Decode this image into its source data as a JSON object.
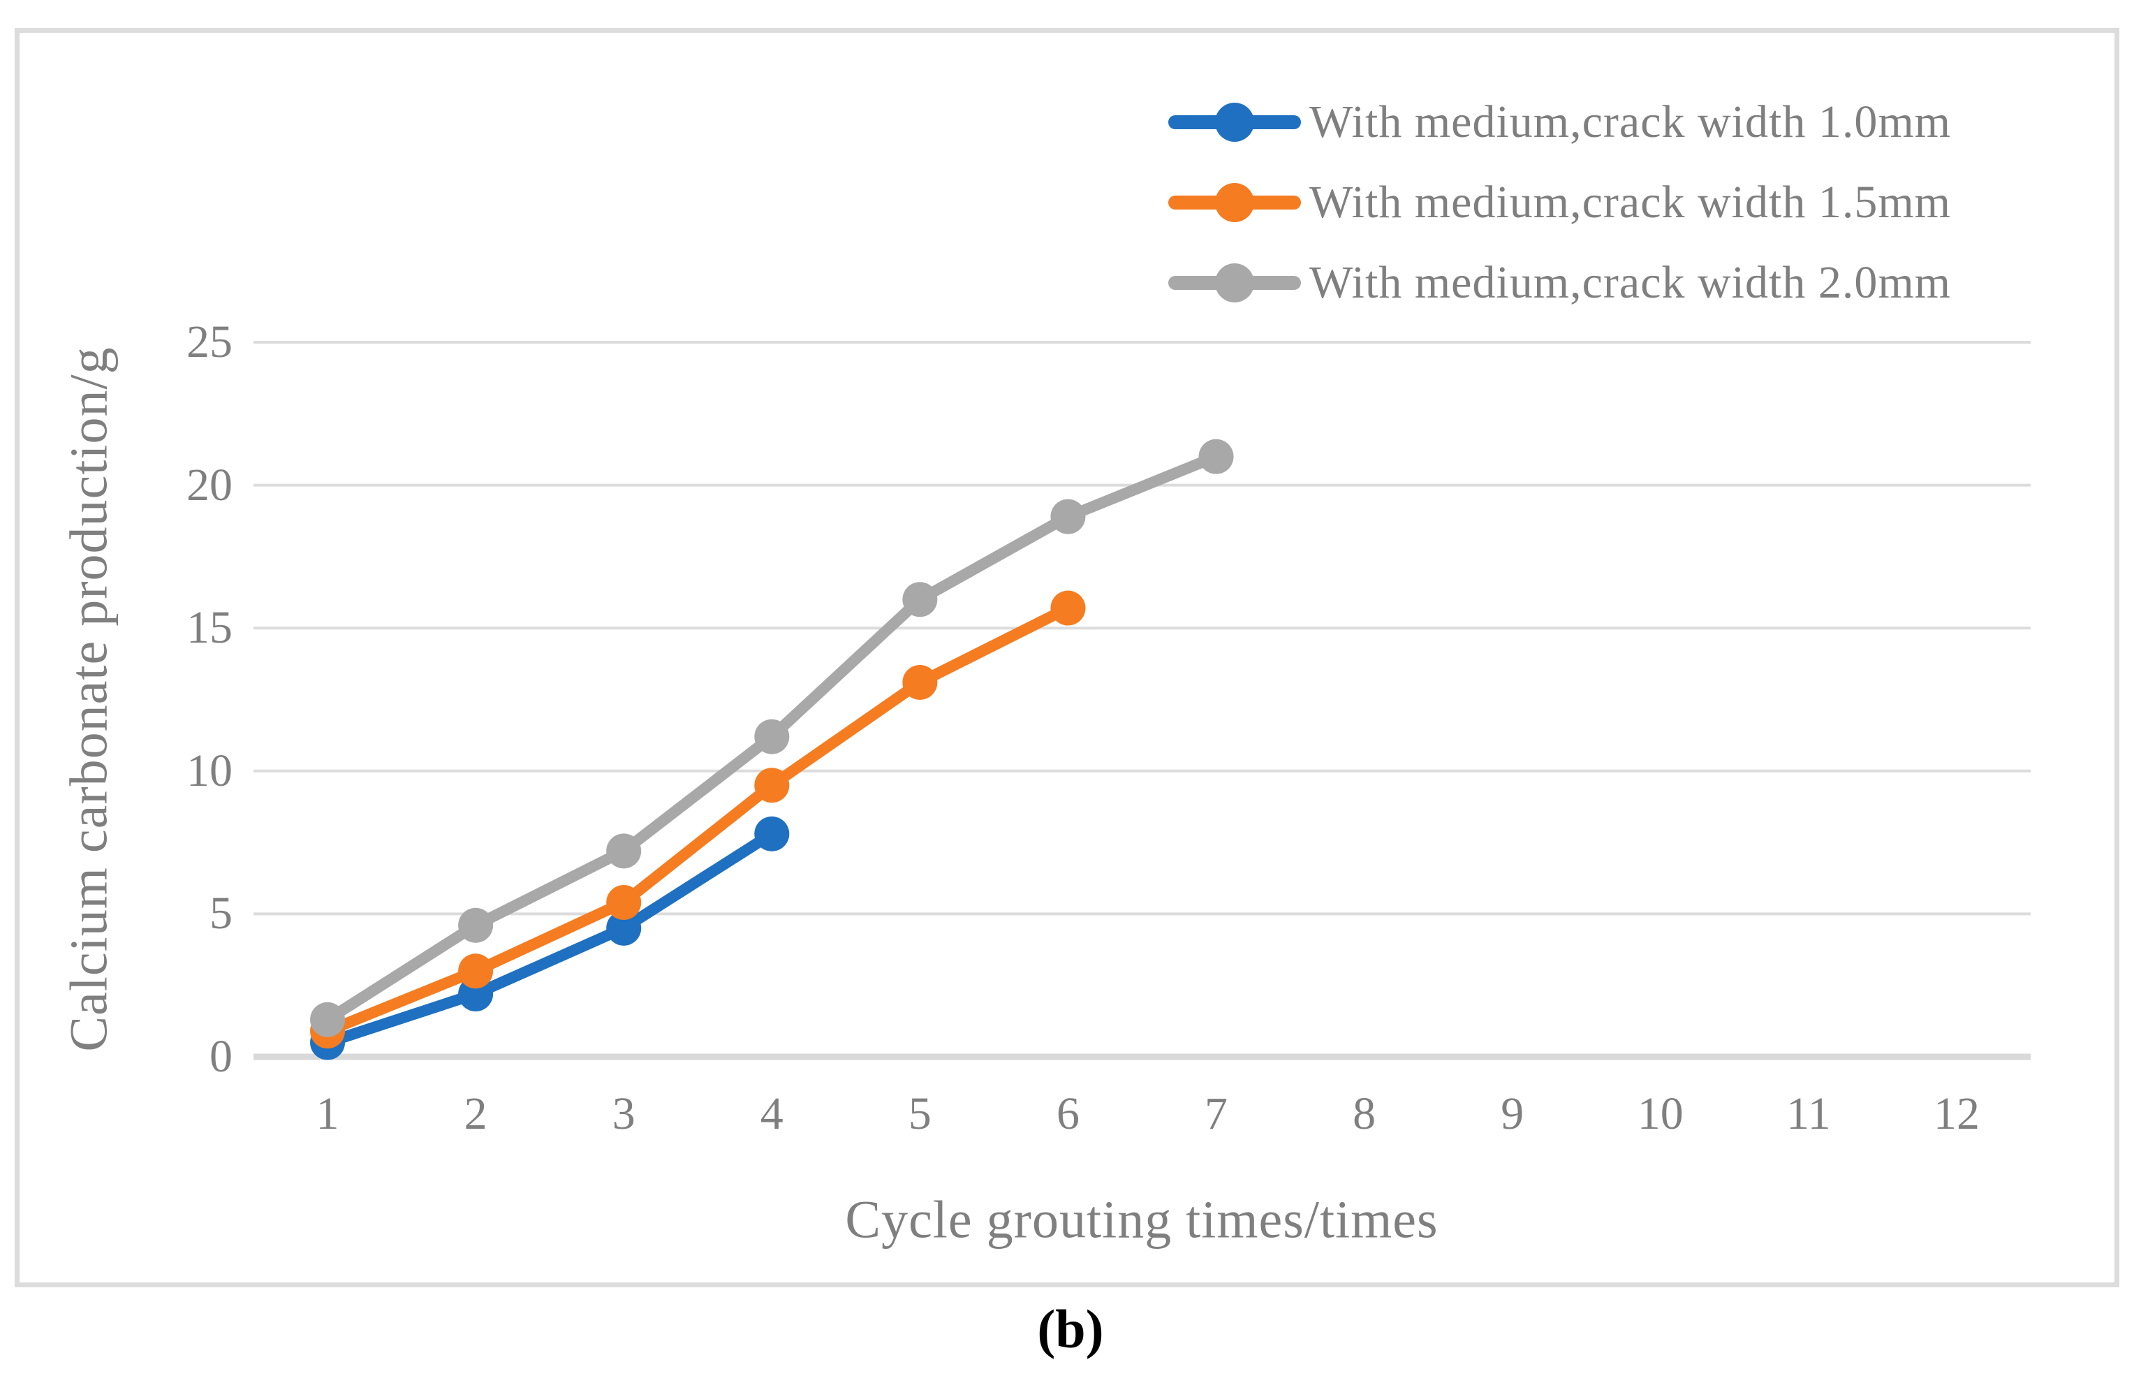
{
  "figure": {
    "caption": "(b)"
  },
  "chart_data": {
    "type": "line",
    "x": [
      1,
      2,
      3,
      4,
      5,
      6,
      7,
      8,
      9,
      10,
      11,
      12
    ],
    "xlabel": "Cycle grouting times/times",
    "ylabel": "Calcium carbonate production/g",
    "ylim": [
      0,
      25
    ],
    "yticks": [
      0,
      5,
      10,
      15,
      20,
      25
    ],
    "grid": true,
    "legend_position": "top-right",
    "series": [
      {
        "name": "With medium,crack width 1.0mm",
        "color": "#1f70c1",
        "x": [
          1,
          2,
          3,
          4
        ],
        "values": [
          0.5,
          2.2,
          4.5,
          7.8
        ]
      },
      {
        "name": "With medium,crack width 1.5mm",
        "color": "#f57c20",
        "x": [
          1,
          2,
          3,
          4,
          5,
          6
        ],
        "values": [
          0.9,
          3.0,
          5.4,
          9.5,
          13.1,
          15.7
        ]
      },
      {
        "name": "With medium,crack width 2.0mm",
        "color": "#a8a8a8",
        "x": [
          1,
          2,
          3,
          4,
          5,
          6,
          7
        ],
        "values": [
          1.3,
          4.6,
          7.2,
          11.2,
          16.0,
          18.9,
          21.0
        ]
      }
    ],
    "colors": {
      "gridline": "#dcdcdc",
      "axis_line": "#d9d9d9",
      "text": "#7f7f7f",
      "frame_border": "#dcdcdc",
      "caption": "#000000"
    }
  }
}
